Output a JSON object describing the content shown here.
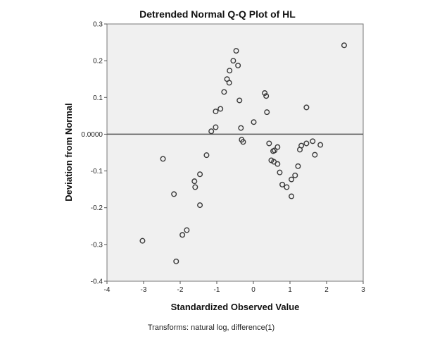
{
  "chart_data": {
    "type": "scatter",
    "title": "Detrended Normal Q-Q Plot of HL",
    "xlabel": "Standardized Observed Value",
    "ylabel": "Deviation from Normal",
    "footnote": "Transforms: natural log, difference(1)",
    "xlim": [
      -4,
      3
    ],
    "ylim": [
      -0.4,
      0.3
    ],
    "xticks": [
      "-4",
      "-3",
      "-2",
      "-1",
      "0",
      "1",
      "2",
      "3"
    ],
    "yticks": [
      {
        "v": 0.3,
        "label": "0.3"
      },
      {
        "v": 0.2,
        "label": "0.2"
      },
      {
        "v": 0.1,
        "label": "0.1"
      },
      {
        "v": 0,
        "label": "0.0000"
      },
      {
        "v": -0.1,
        "label": "-0.1"
      },
      {
        "v": -0.2,
        "label": "-0.2"
      },
      {
        "v": -0.3,
        "label": "-0.3"
      },
      {
        "v": -0.4,
        "label": "-0.4"
      }
    ],
    "reference_line": 0,
    "grid": false,
    "colors": {
      "background": "#f0f0f0",
      "marker": "#3a3a3a",
      "axis": "#555555"
    },
    "points": [
      [
        -0.47,
        0.227
      ],
      [
        -0.55,
        0.2
      ],
      [
        -0.42,
        0.187
      ],
      [
        -0.65,
        0.173
      ],
      [
        -0.72,
        0.15
      ],
      [
        -0.66,
        0.14
      ],
      [
        -0.8,
        0.115
      ],
      [
        -0.38,
        0.092
      ],
      [
        -0.9,
        0.069
      ],
      [
        -1.03,
        0.062
      ],
      [
        -1.03,
        0.019
      ],
      [
        -1.15,
        0.008
      ],
      [
        -0.34,
        0.017
      ],
      [
        -0.32,
        -0.015
      ],
      [
        -0.28,
        -0.021
      ],
      [
        2.48,
        0.242
      ],
      [
        0.31,
        0.112
      ],
      [
        0.35,
        0.104
      ],
      [
        1.45,
        0.073
      ],
      [
        0.37,
        0.06
      ],
      [
        0.01,
        0.033
      ],
      [
        0.43,
        -0.025
      ],
      [
        0.66,
        -0.035
      ],
      [
        0.58,
        -0.044
      ],
      [
        0.54,
        -0.046
      ],
      [
        0.49,
        -0.071
      ],
      [
        0.56,
        -0.075
      ],
      [
        0.66,
        -0.081
      ],
      [
        0.72,
        -0.104
      ],
      [
        1.22,
        -0.087
      ],
      [
        1.14,
        -0.112
      ],
      [
        1.04,
        -0.123
      ],
      [
        0.79,
        -0.137
      ],
      [
        0.91,
        -0.144
      ],
      [
        1.04,
        -0.169
      ],
      [
        1.31,
        -0.031
      ],
      [
        1.27,
        -0.042
      ],
      [
        1.45,
        -0.025
      ],
      [
        1.62,
        -0.019
      ],
      [
        1.83,
        -0.029
      ],
      [
        1.68,
        -0.056
      ],
      [
        -2.47,
        -0.067
      ],
      [
        -1.28,
        -0.057
      ],
      [
        -1.46,
        -0.109
      ],
      [
        -1.61,
        -0.128
      ],
      [
        -1.59,
        -0.144
      ],
      [
        -2.17,
        -0.163
      ],
      [
        -1.46,
        -0.193
      ],
      [
        -1.82,
        -0.261
      ],
      [
        -1.94,
        -0.274
      ],
      [
        -3.03,
        -0.29
      ],
      [
        -2.11,
        -0.346
      ]
    ]
  }
}
